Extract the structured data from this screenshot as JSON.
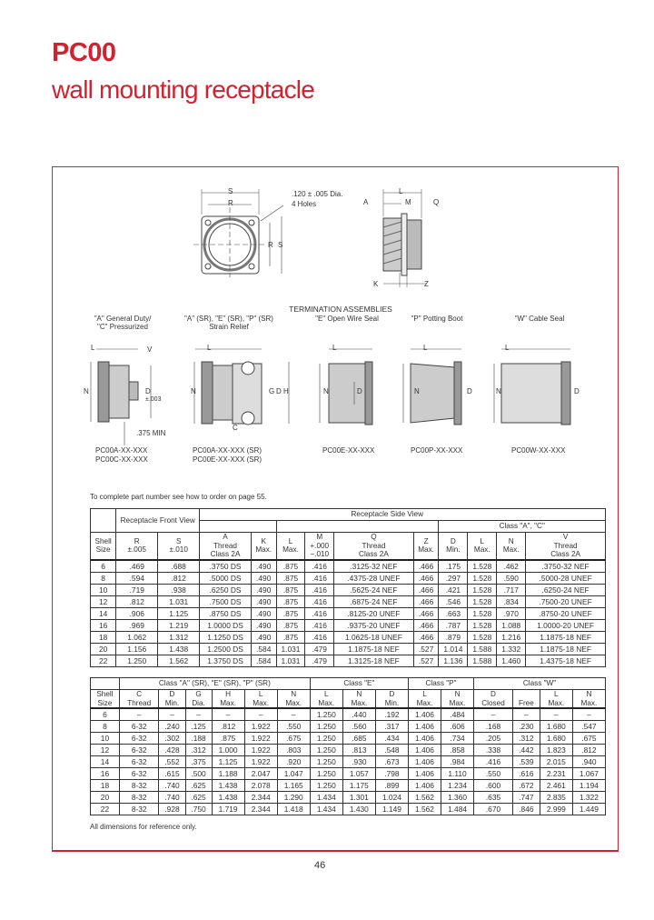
{
  "header": {
    "title": "PC00",
    "subtitle": "wall mounting receptacle"
  },
  "drawing": {
    "front_labels": {
      "s": "S",
      "r": "R",
      "holes_line1": ".120 ± .005 Dia.",
      "holes_line2": "4 Holes"
    },
    "side_labels": {
      "l": "L",
      "m": "M",
      "a": "A",
      "q": "Q",
      "k": "K",
      "z": "Z"
    },
    "termination_title": "TERMINATION ASSEMBLIES",
    "assemblies": [
      {
        "heading": [
          "\"A\" General Duty/",
          "\"C\" Pressurized"
        ],
        "parts": [
          "PC00A-XX-XXX",
          "PC00C-XX-XXX"
        ],
        "dims": [
          "L",
          "V",
          "N",
          "D",
          "±.003",
          ".375 MIN"
        ]
      },
      {
        "heading": [
          "\"A\" (SR), \"E\" (SR), \"P\" (SR)",
          "Strain Relief"
        ],
        "parts": [
          "PC00A-XX-XXX (SR)",
          "PC00E-XX-XXX (SR)"
        ],
        "dims": [
          "L",
          "N",
          "G",
          "D",
          "H",
          "C"
        ]
      },
      {
        "heading": [
          "\"E\" Open Wire Seal"
        ],
        "parts": [
          "PC00E-XX-XXX"
        ],
        "dims": [
          "L",
          "N",
          "D"
        ]
      },
      {
        "heading": [
          "\"P\" Potting Boot"
        ],
        "parts": [
          "PC00P-XX-XXX"
        ],
        "dims": [
          "L",
          "N",
          "D"
        ]
      },
      {
        "heading": [
          "\"W\" Cable Seal"
        ],
        "parts": [
          "PC00W-XX-XXX"
        ],
        "dims": [
          "L",
          "N",
          "D"
        ]
      }
    ]
  },
  "order_note": "To complete part number see how to order on page 55.",
  "table1": {
    "group_front": "Receptacle Front View",
    "group_side": "Receptacle Side View",
    "group_class": "Class \"A\", \"C\"",
    "columns": [
      [
        "Shell",
        "Size"
      ],
      [
        "R",
        "±.005"
      ],
      [
        "S",
        "±.010"
      ],
      [
        "A",
        "Thread",
        "Class 2A"
      ],
      [
        "K",
        "Max."
      ],
      [
        "L",
        "Max."
      ],
      [
        "M",
        "+.000",
        "−.010"
      ],
      [
        "Q",
        "Thread",
        "Class 2A"
      ],
      [
        "Z",
        "Max."
      ],
      [
        "D",
        "Min."
      ],
      [
        "L",
        "Max."
      ],
      [
        "N",
        "Max."
      ],
      [
        "V",
        "Thread",
        "Class 2A"
      ]
    ],
    "rows": [
      [
        "6",
        ".469",
        ".688",
        ".3750 DS",
        ".490",
        ".875",
        ".416",
        ".3125-32 NEF",
        ".466",
        ".175",
        "1.528",
        ".462",
        ".3750-32 NEF"
      ],
      [
        "8",
        ".594",
        ".812",
        ".5000 DS",
        ".490",
        ".875",
        ".416",
        ".4375-28 UNEF",
        ".466",
        ".297",
        "1.528",
        ".590",
        ".5000-28 UNEF"
      ],
      [
        "10",
        ".719",
        ".938",
        ".6250 DS",
        ".490",
        ".875",
        ".416",
        ".5625-24 NEF",
        ".466",
        ".421",
        "1.528",
        ".717",
        ".6250-24 NEF"
      ],
      [
        "12",
        ".812",
        "1.031",
        ".7500 DS",
        ".490",
        ".875",
        ".416",
        ".6875-24 NEF",
        ".466",
        ".546",
        "1.528",
        ".834",
        ".7500-20 UNEF"
      ],
      [
        "14",
        ".906",
        "1.125",
        ".8750 DS",
        ".490",
        ".875",
        ".416",
        ".8125-20 UNEF",
        ".466",
        ".663",
        "1.528",
        ".970",
        ".8750-20 UNEF"
      ],
      [
        "16",
        ".969",
        "1.219",
        "1.0000 DS",
        ".490",
        ".875",
        ".416",
        ".9375-20 UNEF",
        ".466",
        ".787",
        "1.528",
        "1.088",
        "1.0000-20 UNEF"
      ],
      [
        "18",
        "1.062",
        "1.312",
        "1.1250 DS",
        ".490",
        ".875",
        ".416",
        "1.0625-18 UNEF",
        ".466",
        ".879",
        "1.528",
        "1.216",
        "1.1875-18 NEF"
      ],
      [
        "20",
        "1.156",
        "1.438",
        "1.2500 DS",
        ".584",
        "1.031",
        ".479",
        "1.1875-18 NEF",
        ".527",
        "1.014",
        "1.588",
        "1.332",
        "1.1875-18 NEF"
      ],
      [
        "22",
        "1.250",
        "1.562",
        "1.3750 DS",
        ".584",
        "1.031",
        ".479",
        "1.3125-18 NEF",
        ".527",
        "1.136",
        "1.588",
        "1.460",
        "1.4375-18 NEF"
      ]
    ]
  },
  "table2": {
    "group_sr": "Class \"A\" (SR), \"E\" (SR), \"P\" (SR)",
    "group_e": "Class \"E\"",
    "group_p": "Class \"P\"",
    "group_w": "Class \"W\"",
    "w_d": "D",
    "columns": [
      [
        "Shell",
        "Size"
      ],
      [
        "C",
        "Thread"
      ],
      [
        "D",
        "Min."
      ],
      [
        "G",
        "Dia."
      ],
      [
        "H",
        "Max."
      ],
      [
        "L",
        "Max."
      ],
      [
        "N",
        "Max."
      ],
      [
        "L",
        "Max."
      ],
      [
        "N",
        "Max."
      ],
      [
        "D",
        "Min."
      ],
      [
        "L",
        "Max."
      ],
      [
        "N",
        "Max."
      ],
      [
        "Closed"
      ],
      [
        "Free"
      ],
      [
        "L",
        "Max."
      ],
      [
        "N",
        "Max."
      ]
    ],
    "rows": [
      [
        "6",
        "–",
        "–",
        "–",
        "–",
        "–",
        "–",
        "1.250",
        ".440",
        ".192",
        "1.406",
        ".484",
        "–",
        "–",
        "–",
        "–"
      ],
      [
        "8",
        "6-32",
        ".240",
        ".125",
        ".812",
        "1.922",
        ".550",
        "1.250",
        ".560",
        ".317",
        "1.406",
        ".606",
        ".168",
        ".230",
        "1.680",
        ".547"
      ],
      [
        "10",
        "6-32",
        ".302",
        ".188",
        ".875",
        "1.922",
        ".675",
        "1.250",
        ".685",
        ".434",
        "1.406",
        ".734",
        ".205",
        ".312",
        "1.680",
        ".675"
      ],
      [
        "12",
        "6-32",
        ".428",
        ".312",
        "1.000",
        "1.922",
        ".803",
        "1.250",
        ".813",
        ".548",
        "1.406",
        ".858",
        ".338",
        ".442",
        "1.823",
        ".812"
      ],
      [
        "14",
        "6-32",
        ".552",
        ".375",
        "1.125",
        "1.922",
        ".920",
        "1.250",
        ".930",
        ".673",
        "1.406",
        ".984",
        ".416",
        ".539",
        "2.015",
        ".940"
      ],
      [
        "16",
        "6-32",
        ".615",
        ".500",
        "1.188",
        "2.047",
        "1.047",
        "1.250",
        "1.057",
        ".798",
        "1.406",
        "1.110",
        ".550",
        ".616",
        "2.231",
        "1.067"
      ],
      [
        "18",
        "8-32",
        ".740",
        ".625",
        "1.438",
        "2.078",
        "1.165",
        "1.250",
        "1.175",
        ".899",
        "1.406",
        "1.234",
        ".600",
        ".672",
        "2.461",
        "1.194"
      ],
      [
        "20",
        "8-32",
        ".740",
        ".625",
        "1.438",
        "2.344",
        "1.290",
        "1.434",
        "1.301",
        "1.024",
        "1.562",
        "1.360",
        ".635",
        ".747",
        "2.835",
        "1.322"
      ],
      [
        "22",
        "8-32",
        ".928",
        ".750",
        "1.719",
        "2.344",
        "1.418",
        "1.434",
        "1.430",
        "1.149",
        "1.562",
        "1.484",
        ".670",
        ".846",
        "2.999",
        "1.449"
      ]
    ]
  },
  "footnote": "All dimensions for reference only.",
  "page_number": "46",
  "colors": {
    "brand_red": "#d3222f"
  }
}
